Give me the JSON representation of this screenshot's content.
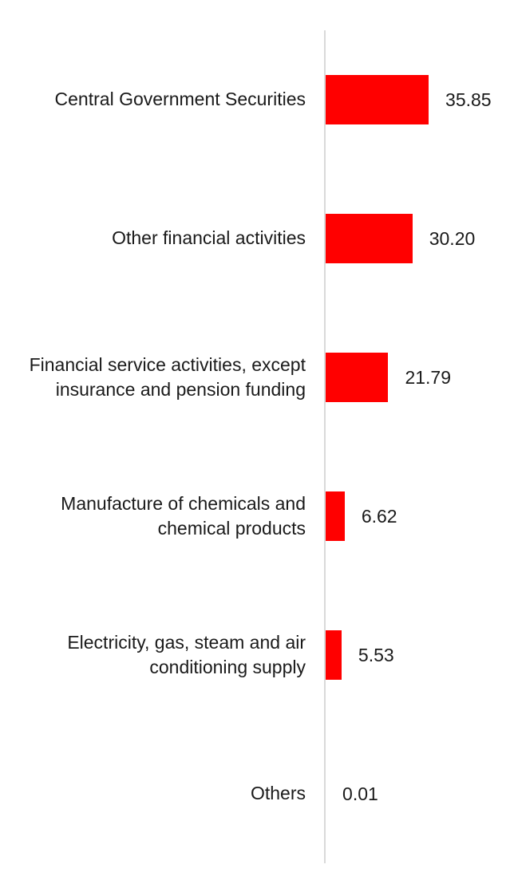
{
  "chart_data": {
    "type": "bar",
    "orientation": "horizontal",
    "title": "",
    "xlabel": "",
    "ylabel": "",
    "xlim": [
      0,
      40
    ],
    "grid": false,
    "legend": false,
    "bar_color": "#ff0000",
    "axis_line_color": "#d9d9d9",
    "text_color": "#1a1a1a",
    "categories": [
      "Central Government Securities",
      "Other financial activities",
      "Financial service activities, except\ninsurance and pension funding",
      "Manufacture of chemicals and\nchemical products",
      "Electricity, gas, steam and air\nconditioning supply",
      "Others"
    ],
    "values": [
      35.85,
      30.2,
      21.79,
      6.62,
      5.53,
      0.01
    ],
    "value_labels": [
      "35.85",
      "30.20",
      "21.79",
      "6.62",
      "5.53",
      "0.01"
    ]
  }
}
